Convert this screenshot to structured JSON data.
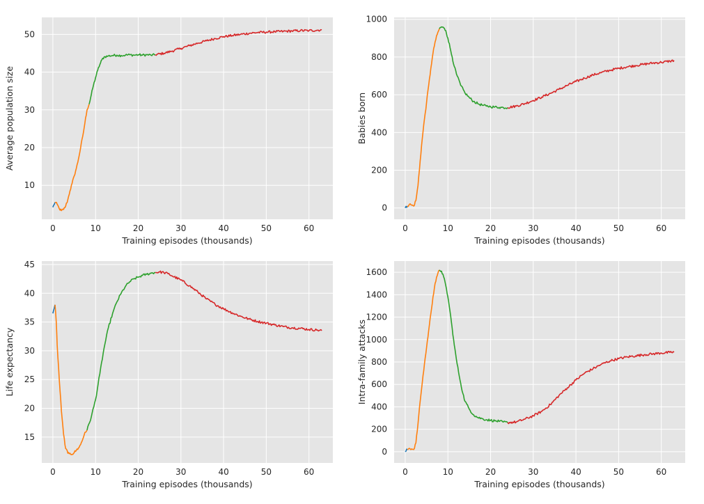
{
  "chart_data": [
    {
      "type": "line",
      "xlabel": "Training episodes (thousands)",
      "ylabel": "Average population size",
      "xlim": [
        -2.6,
        65.6
      ],
      "ylim": [
        1,
        54.5
      ],
      "xticks": [
        0,
        10,
        20,
        30,
        40,
        50,
        60
      ],
      "yticks": [
        10,
        20,
        30,
        40,
        50
      ],
      "grid": true,
      "series": [
        {
          "color": "#1f77b4",
          "points": [
            [
              0,
              4.2
            ],
            [
              0.5,
              5.5
            ]
          ]
        },
        {
          "color": "#ff7f0e",
          "points": [
            [
              0.5,
              5.5
            ],
            [
              1,
              5.0
            ],
            [
              1.5,
              3.8
            ],
            [
              2,
              3.3
            ],
            [
              2.5,
              3.6
            ],
            [
              3,
              4.5
            ],
            [
              3.5,
              6.2
            ],
            [
              4,
              8.5
            ],
            [
              4.5,
              10.5
            ],
            [
              5,
              12.5
            ],
            [
              5.5,
              14.5
            ],
            [
              6,
              17.0
            ],
            [
              6.5,
              20.0
            ],
            [
              7,
              23.0
            ],
            [
              7.5,
              26.5
            ],
            [
              8,
              30.0
            ],
            [
              8.5,
              31.5
            ]
          ]
        },
        {
          "color": "#2ca02c",
          "points": [
            [
              8.5,
              31.5
            ],
            [
              9,
              34.0
            ],
            [
              9.5,
              36.5
            ],
            [
              10,
              38.5
            ],
            [
              10.5,
              40.5
            ],
            [
              11,
              42.0
            ],
            [
              11.5,
              43.3
            ],
            [
              12,
              44.0
            ],
            [
              13,
              44.3
            ],
            [
              14,
              44.4
            ],
            [
              15,
              44.5
            ],
            [
              16,
              44.4
            ],
            [
              17,
              44.5
            ],
            [
              18,
              44.6
            ],
            [
              19,
              44.5
            ],
            [
              20,
              44.6
            ],
            [
              21,
              44.5
            ],
            [
              22,
              44.6
            ],
            [
              23,
              44.5
            ],
            [
              24,
              44.6
            ]
          ]
        },
        {
          "color": "#d62728",
          "points": [
            [
              24,
              44.6
            ],
            [
              26,
              45.0
            ],
            [
              28,
              45.6
            ],
            [
              30,
              46.3
            ],
            [
              32,
              47.0
            ],
            [
              34,
              47.7
            ],
            [
              36,
              48.3
            ],
            [
              38,
              48.9
            ],
            [
              40,
              49.4
            ],
            [
              42,
              49.7
            ],
            [
              44,
              50.0
            ],
            [
              46,
              50.3
            ],
            [
              48,
              50.5
            ],
            [
              50,
              50.6
            ],
            [
              52,
              50.7
            ],
            [
              54,
              50.8
            ],
            [
              56,
              50.9
            ],
            [
              58,
              51.0
            ],
            [
              60,
              51.0
            ],
            [
              62,
              51.1
            ],
            [
              63,
              51.2
            ]
          ]
        }
      ]
    },
    {
      "type": "line",
      "xlabel": "Training episodes (thousands)",
      "ylabel": "Babies born",
      "xlim": [
        -2.6,
        65.6
      ],
      "ylim": [
        -60,
        1010
      ],
      "xticks": [
        0,
        10,
        20,
        30,
        40,
        50,
        60
      ],
      "yticks": [
        0,
        200,
        400,
        600,
        800,
        1000
      ],
      "grid": true,
      "series": [
        {
          "color": "#1f77b4",
          "points": [
            [
              0,
              0
            ],
            [
              0.5,
              10
            ]
          ]
        },
        {
          "color": "#ff7f0e",
          "points": [
            [
              0.5,
              10
            ],
            [
              1,
              20
            ],
            [
              1.5,
              15
            ],
            [
              2,
              10
            ],
            [
              2.5,
              40
            ],
            [
              3,
              120
            ],
            [
              3.5,
              250
            ],
            [
              4,
              370
            ],
            [
              4.5,
              470
            ],
            [
              5,
              560
            ],
            [
              5.5,
              650
            ],
            [
              6,
              740
            ],
            [
              6.5,
              820
            ],
            [
              7,
              880
            ],
            [
              7.5,
              920
            ],
            [
              8,
              950
            ]
          ]
        },
        {
          "color": "#2ca02c",
          "points": [
            [
              8,
              950
            ],
            [
              8.5,
              960
            ],
            [
              9,
              955
            ],
            [
              9.5,
              940
            ],
            [
              10,
              900
            ],
            [
              10.5,
              850
            ],
            [
              11,
              800
            ],
            [
              11.5,
              750
            ],
            [
              12,
              710
            ],
            [
              13,
              650
            ],
            [
              14,
              610
            ],
            [
              15,
              585
            ],
            [
              16,
              565
            ],
            [
              17,
              553
            ],
            [
              18,
              545
            ],
            [
              19,
              540
            ],
            [
              20,
              537
            ],
            [
              21,
              535
            ],
            [
              22,
              533
            ],
            [
              23,
              532
            ],
            [
              24,
              532
            ]
          ]
        },
        {
          "color": "#d62728",
          "points": [
            [
              24,
              532
            ],
            [
              26,
              540
            ],
            [
              28,
              553
            ],
            [
              30,
              570
            ],
            [
              32,
              588
            ],
            [
              34,
              607
            ],
            [
              36,
              628
            ],
            [
              38,
              650
            ],
            [
              40,
              670
            ],
            [
              42,
              688
            ],
            [
              44,
              705
            ],
            [
              46,
              718
            ],
            [
              48,
              730
            ],
            [
              50,
              740
            ],
            [
              52,
              748
            ],
            [
              54,
              755
            ],
            [
              56,
              762
            ],
            [
              58,
              768
            ],
            [
              60,
              772
            ],
            [
              62,
              778
            ],
            [
              63,
              782
            ]
          ]
        }
      ]
    },
    {
      "type": "line",
      "xlabel": "Training episodes (thousands)",
      "ylabel": "Life expectancy",
      "xlim": [
        -2.6,
        65.6
      ],
      "ylim": [
        10.5,
        45.6
      ],
      "xticks": [
        0,
        10,
        20,
        30,
        40,
        50,
        60
      ],
      "yticks": [
        15,
        20,
        25,
        30,
        35,
        40,
        45
      ],
      "grid": true,
      "series": [
        {
          "color": "#1f77b4",
          "points": [
            [
              0,
              36.5
            ],
            [
              0.5,
              38.0
            ]
          ]
        },
        {
          "color": "#ff7f0e",
          "points": [
            [
              0.5,
              38.0
            ],
            [
              0.8,
              35.0
            ],
            [
              1,
              31.0
            ],
            [
              1.5,
              25.0
            ],
            [
              2,
              19.5
            ],
            [
              2.5,
              15.5
            ],
            [
              3,
              13.0
            ],
            [
              3.5,
              12.2
            ],
            [
              4,
              12.2
            ],
            [
              4.5,
              12.0
            ],
            [
              5,
              12.3
            ],
            [
              5.5,
              12.7
            ],
            [
              6,
              13.1
            ],
            [
              6.5,
              13.7
            ],
            [
              7,
              14.6
            ],
            [
              7.5,
              15.8
            ],
            [
              8,
              16.2
            ]
          ]
        },
        {
          "color": "#2ca02c",
          "points": [
            [
              8,
              16.2
            ],
            [
              9,
              18.5
            ],
            [
              10,
              21.5
            ],
            [
              11,
              26.0
            ],
            [
              12,
              30.5
            ],
            [
              13,
              34.0
            ],
            [
              14,
              36.5
            ],
            [
              15,
              38.5
            ],
            [
              16,
              40.0
            ],
            [
              17,
              41.2
            ],
            [
              18,
              42.0
            ],
            [
              19,
              42.5
            ],
            [
              20,
              42.8
            ],
            [
              21,
              43.1
            ],
            [
              22,
              43.3
            ],
            [
              23,
              43.5
            ],
            [
              24,
              43.6
            ]
          ]
        },
        {
          "color": "#d62728",
          "points": [
            [
              24,
              43.6
            ],
            [
              25,
              43.7
            ],
            [
              26,
              43.6
            ],
            [
              27,
              43.4
            ],
            [
              28,
              43.0
            ],
            [
              30,
              42.3
            ],
            [
              32,
              41.3
            ],
            [
              34,
              40.2
            ],
            [
              36,
              39.0
            ],
            [
              38,
              38.1
            ],
            [
              40,
              37.3
            ],
            [
              42,
              36.6
            ],
            [
              44,
              36.0
            ],
            [
              46,
              35.5
            ],
            [
              48,
              35.1
            ],
            [
              50,
              34.8
            ],
            [
              52,
              34.5
            ],
            [
              54,
              34.2
            ],
            [
              56,
              34.0
            ],
            [
              58,
              33.9
            ],
            [
              60,
              33.7
            ],
            [
              62,
              33.6
            ],
            [
              63,
              33.5
            ]
          ]
        }
      ]
    },
    {
      "type": "line",
      "xlabel": "Training episodes (thousands)",
      "ylabel": "Intra-family attacks",
      "xlim": [
        -2.6,
        65.6
      ],
      "ylim": [
        -100,
        1700
      ],
      "xticks": [
        0,
        10,
        20,
        30,
        40,
        50,
        60
      ],
      "yticks": [
        0,
        200,
        400,
        600,
        800,
        1000,
        1200,
        1400,
        1600
      ],
      "grid": true,
      "series": [
        {
          "color": "#1f77b4",
          "points": [
            [
              0,
              0
            ],
            [
              0.5,
              20
            ]
          ]
        },
        {
          "color": "#ff7f0e",
          "points": [
            [
              0.5,
              20
            ],
            [
              1,
              30
            ],
            [
              1.5,
              25
            ],
            [
              2,
              20
            ],
            [
              2.5,
              80
            ],
            [
              3,
              250
            ],
            [
              3.5,
              450
            ],
            [
              4,
              620
            ],
            [
              4.5,
              780
            ],
            [
              5,
              930
            ],
            [
              5.5,
              1080
            ],
            [
              6,
              1230
            ],
            [
              6.5,
              1380
            ],
            [
              7,
              1500
            ],
            [
              7.5,
              1570
            ],
            [
              8,
              1620
            ]
          ]
        },
        {
          "color": "#2ca02c",
          "points": [
            [
              8,
              1620
            ],
            [
              8.5,
              1610
            ],
            [
              9,
              1560
            ],
            [
              9.5,
              1480
            ],
            [
              10,
              1380
            ],
            [
              10.5,
              1250
            ],
            [
              11,
              1100
            ],
            [
              11.5,
              950
            ],
            [
              12,
              820
            ],
            [
              12.5,
              710
            ],
            [
              13,
              610
            ],
            [
              13.5,
              520
            ],
            [
              14,
              450
            ],
            [
              15,
              380
            ],
            [
              16,
              330
            ],
            [
              17,
              305
            ],
            [
              18,
              295
            ],
            [
              19,
              285
            ],
            [
              20,
              280
            ],
            [
              21,
              275
            ],
            [
              22,
              270
            ],
            [
              23,
              265
            ],
            [
              24,
              260
            ]
          ]
        },
        {
          "color": "#d62728",
          "points": [
            [
              24,
              260
            ],
            [
              26,
              265
            ],
            [
              28,
              290
            ],
            [
              30,
              320
            ],
            [
              32,
              360
            ],
            [
              34,
              420
            ],
            [
              36,
              500
            ],
            [
              38,
              570
            ],
            [
              40,
              640
            ],
            [
              42,
              700
            ],
            [
              44,
              740
            ],
            [
              46,
              780
            ],
            [
              48,
              810
            ],
            [
              50,
              830
            ],
            [
              52,
              845
            ],
            [
              54,
              855
            ],
            [
              56,
              865
            ],
            [
              58,
              872
            ],
            [
              60,
              880
            ],
            [
              62,
              885
            ],
            [
              63,
              888
            ]
          ]
        }
      ]
    }
  ]
}
